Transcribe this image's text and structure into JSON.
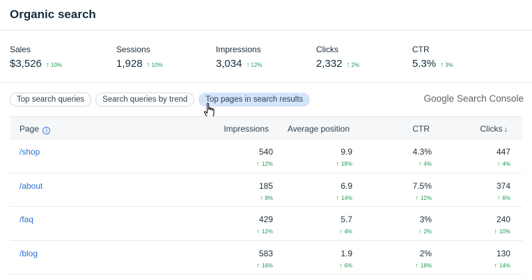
{
  "header": {
    "title": "Organic search"
  },
  "stats": [
    {
      "label": "Sales",
      "value": "$3,526",
      "trend": "10%"
    },
    {
      "label": "Sessions",
      "value": "1,928",
      "trend": "10%"
    },
    {
      "label": "Impressions",
      "value": "3,034",
      "trend": "12%"
    },
    {
      "label": "Clicks",
      "value": "2,332",
      "trend": "2%"
    },
    {
      "label": "CTR",
      "value": "5.3%",
      "trend": "3%"
    }
  ],
  "tabs": [
    {
      "label": "Top search queries",
      "active": false
    },
    {
      "label": "Search queries by trend",
      "active": false
    },
    {
      "label": "Top pages in search results",
      "active": true
    }
  ],
  "brand": {
    "google": "Google",
    "search_console": "Search Console"
  },
  "table": {
    "columns": {
      "page": "Page",
      "impressions": "Impressions",
      "avg_position": "Average position",
      "ctr": "CTR",
      "clicks": "Clicks"
    },
    "rows": [
      {
        "page": "/shop",
        "impressions": "540",
        "impressions_trend": "12%",
        "avg_position": "9.9",
        "avg_position_trend": "18%",
        "ctr": "4.3%",
        "ctr_trend": "4%",
        "clicks": "447",
        "clicks_trend": "4%"
      },
      {
        "page": "/about",
        "impressions": "185",
        "impressions_trend": "8%",
        "avg_position": "6.9",
        "avg_position_trend": "14%",
        "ctr": "7.5%",
        "ctr_trend": "12%",
        "clicks": "374",
        "clicks_trend": "6%"
      },
      {
        "page": "/faq",
        "impressions": "429",
        "impressions_trend": "12%",
        "avg_position": "5.7",
        "avg_position_trend": "4%",
        "ctr": "3%",
        "ctr_trend": "2%",
        "clicks": "240",
        "clicks_trend": "10%"
      },
      {
        "page": "/blog",
        "impressions": "583",
        "impressions_trend": "16%",
        "avg_position": "1.9",
        "avg_position_trend": "6%",
        "ctr": "2%",
        "ctr_trend": "18%",
        "clicks": "130",
        "clicks_trend": "14%"
      }
    ]
  },
  "colors": {
    "trend_up": "#1f9a56",
    "link": "#2f6fd3",
    "active_tab": "#d4e4fb"
  },
  "icons": {
    "trend": "arrow-up-icon",
    "info": "info-icon",
    "sort": "arrow-down-icon",
    "cursor": "hand-pointer-icon"
  }
}
